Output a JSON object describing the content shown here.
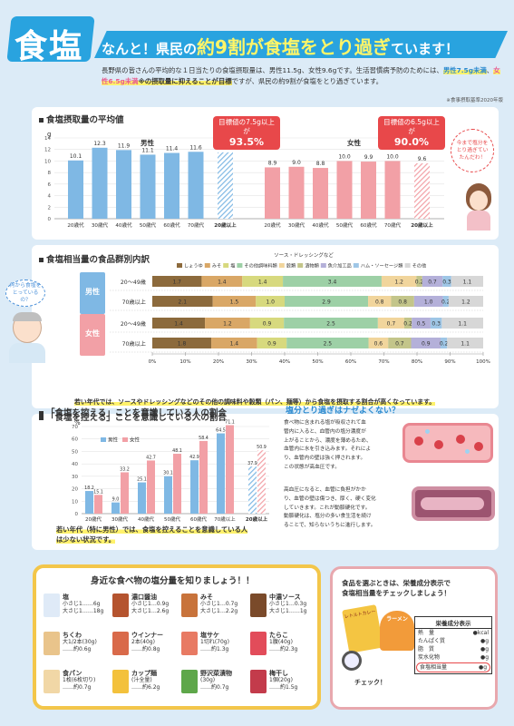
{
  "header": {
    "title": "食塩",
    "headline_pre": "なんと！県民の",
    "headline_big": "約9割が食塩をとり過ぎ",
    "headline_post": "ています！",
    "lead_1": "長野県の皆さんの平均的な１日当たりの食塩摂取量は、男性11.5g、女性9.6gです。生活習慣病予防のためには、",
    "lead_m": "男性7.5g未満",
    "lead_sep": "、",
    "lead_f": "女性6.5g未満",
    "lead_mid": "※の摂取量に抑えることが目標",
    "lead_end": "ですが、県民の約9割が食塩をとり過ぎています。",
    "source": "※食事摂取基準2020年版"
  },
  "intake": {
    "title": "食塩摂取量の平均値",
    "unit": "g",
    "male_label": "男性",
    "female_label": "女性",
    "callout_male": "目標値の7.5g以上が",
    "callout_male_pct": "93.5%",
    "callout_female": "目標値の6.5g以上が",
    "callout_female_pct": "90.0%",
    "bubble": "今まで塩分をとり過ぎていたんだわ！"
  },
  "chart_data": [
    {
      "type": "bar",
      "title": "食塩摂取量の平均値",
      "ylabel": "g",
      "ylim": [
        0,
        14
      ],
      "yticks": [
        0,
        2,
        4,
        6,
        8,
        10,
        12,
        14
      ],
      "categories": [
        "20歳代",
        "30歳代",
        "40歳代",
        "50歳代",
        "60歳代",
        "70歳代",
        "20歳以上"
      ],
      "series": [
        {
          "name": "男性",
          "values": [
            10.1,
            12.3,
            11.9,
            11.1,
            11.4,
            11.6,
            11.5
          ],
          "color": "#7fb8e4"
        },
        {
          "name": "女性",
          "values": [
            8.9,
            9.0,
            8.8,
            10.0,
            9.9,
            10.0,
            9.6
          ],
          "color": "#f2a0a6"
        }
      ]
    },
    {
      "type": "bar",
      "title": "食塩相当量の食品群別内訳",
      "orientation": "horizontal-stacked",
      "xlim": [
        0,
        100
      ],
      "xticks": [
        "0%",
        "10%",
        "20%",
        "30%",
        "40%",
        "50%",
        "60%",
        "70%",
        "80%",
        "90%",
        "100%"
      ],
      "legend_note": "ソース・ドレッシングなど",
      "categories": [
        "しょうゆ",
        "みそ",
        "塩",
        "その他調味料類",
        "穀類",
        "漬物類",
        "魚介加工品",
        "ハム・ソーセージ類",
        "その他"
      ],
      "colors": [
        "#8c6a3c",
        "#d9a766",
        "#d7d97e",
        "#9dd0a6",
        "#f1d59c",
        "#c3c58a",
        "#b4b0d9",
        "#9ec6e6",
        "#d7d7d7"
      ],
      "groups": [
        {
          "name": "男性",
          "rows": [
            {
              "label": "20～49歳",
              "values": [
                1.7,
                1.4,
                1.4,
                3.4,
                1.2,
                0.2,
                0.7,
                0.3,
                1.1
              ]
            },
            {
              "label": "70歳以上",
              "values": [
                2.1,
                1.5,
                1.0,
                2.9,
                0.8,
                0.8,
                1.0,
                0.2,
                1.2
              ]
            }
          ]
        },
        {
          "name": "女性",
          "rows": [
            {
              "label": "20～49歳",
              "values": [
                1.4,
                1.2,
                0.9,
                2.5,
                0.7,
                0.2,
                0.5,
                0.3,
                1.1
              ]
            },
            {
              "label": "70歳以上",
              "values": [
                1.8,
                1.4,
                0.9,
                2.5,
                0.6,
                0.7,
                0.9,
                0.2,
                1.1
              ]
            }
          ]
        }
      ]
    },
    {
      "type": "bar",
      "title": "「食塩を控える」ことを意識している人の割合",
      "ylabel": "%",
      "ylim": [
        0,
        70
      ],
      "yticks": [
        0,
        10,
        20,
        30,
        40,
        50,
        60,
        70
      ],
      "categories": [
        "20歳代",
        "30歳代",
        "40歳代",
        "50歳代",
        "60歳代",
        "70歳以上",
        "20歳以上"
      ],
      "series": [
        {
          "name": "男性",
          "values": [
            18.2,
            9.0,
            25.1,
            30.1,
            42.9,
            64.5,
            37.9
          ],
          "color": "#7fb8e4"
        },
        {
          "name": "女性",
          "values": [
            15.1,
            33.2,
            42.7,
            48.1,
            58.4,
            71.1,
            50.9
          ],
          "color": "#f2a0a6"
        }
      ]
    }
  ],
  "breakdown": {
    "title": "食塩相当量の食品群別内訳",
    "bubble": "何から食塩をとっているの？",
    "note": "若い年代では、ソースやドレッシングなどのその他の調味料や穀類（パン、麺等）から食塩を摂取する割合が高くなっています。"
  },
  "awareness": {
    "title": "「食塩を控える」ことを意識している人の割合",
    "legend_male": "男性",
    "legend_female": "女性",
    "note_1": "若い年代（特に男性）では、食塩を控えることを意識している人",
    "note_2": "は少ない状況です。"
  },
  "why": {
    "title": "塩分とり過ぎはナゼよくない？",
    "p1": [
      "食べ物に含まれる塩が吸収されて血",
      "管内に入ると、血管内の塩分濃度が",
      "上がることから、濃度を薄めるため、",
      "血管内に水を引き込みます。それによ",
      "り、血管内の壁は強く押されます。",
      "この状態が高血圧です。"
    ],
    "p2": [
      "高血圧になると、血管に負担がかか",
      "り、血管の壁は傷つき、厚く、硬く変化",
      "していきます。これが動脈硬化です。",
      "動脈硬化は、塩分の多い食生活を続け",
      "ることで、知らないうちに進行します。"
    ]
  },
  "foods": {
    "title": "身近な食べ物の塩分量を知りましょう！！",
    "items": [
      {
        "name": "塩",
        "l1": "小さじ1……6g",
        "l2": "大さじ1……18g"
      },
      {
        "name": "濃口醤油",
        "l1": "小さじ1…0.9g",
        "l2": "大さじ1…2.6g"
      },
      {
        "name": "みそ",
        "l1": "小さじ1…0.7g",
        "l2": "大さじ1…2.2g"
      },
      {
        "name": "中濃ソース",
        "l1": "小さじ1…0.3g",
        "l2": "大さじ1……1g"
      },
      {
        "name": "ちくわ",
        "l1": "大1/2本(30g)",
        "l2": "……約0.6g"
      },
      {
        "name": "ウインナー",
        "l1": "2本(40g)",
        "l2": "……約0.8g"
      },
      {
        "name": "塩サケ",
        "l1": "1切れ(70g)",
        "l2": "……約1.3g"
      },
      {
        "name": "たらこ",
        "l1": "1腹(40g)",
        "l2": "……約2.3g"
      },
      {
        "name": "食パン",
        "l1": "1枚(6枚切り)",
        "l2": "……約0.7g"
      },
      {
        "name": "カップ麺",
        "l1": "(汁全量)",
        "l2": "……約6.2g"
      },
      {
        "name": "野沢菜漬物",
        "l1": "(30g)",
        "l2": "……約0.7g"
      },
      {
        "name": "梅干し",
        "l1": "1個(20g)",
        "l2": "……約1.5g"
      }
    ],
    "salt_pack": "塩"
  },
  "label_check": {
    "title_1": "食品を選ぶときは、栄養成分表示で",
    "title_2": "食塩相当量をチェックしましょう！",
    "table_title": "栄養成分表示",
    "rows": [
      {
        "k": "熱　量",
        "v": "●kcal"
      },
      {
        "k": "たんぱく質",
        "v": "●g"
      },
      {
        "k": "脂　質",
        "v": "●g"
      },
      {
        "k": "炭水化物",
        "v": "●g"
      },
      {
        "k": "食塩相当量",
        "v": "●g"
      }
    ],
    "check": "チェック！",
    "pkg_curry": "レトルトカレー",
    "pkg_ramen": "ラーメン"
  }
}
